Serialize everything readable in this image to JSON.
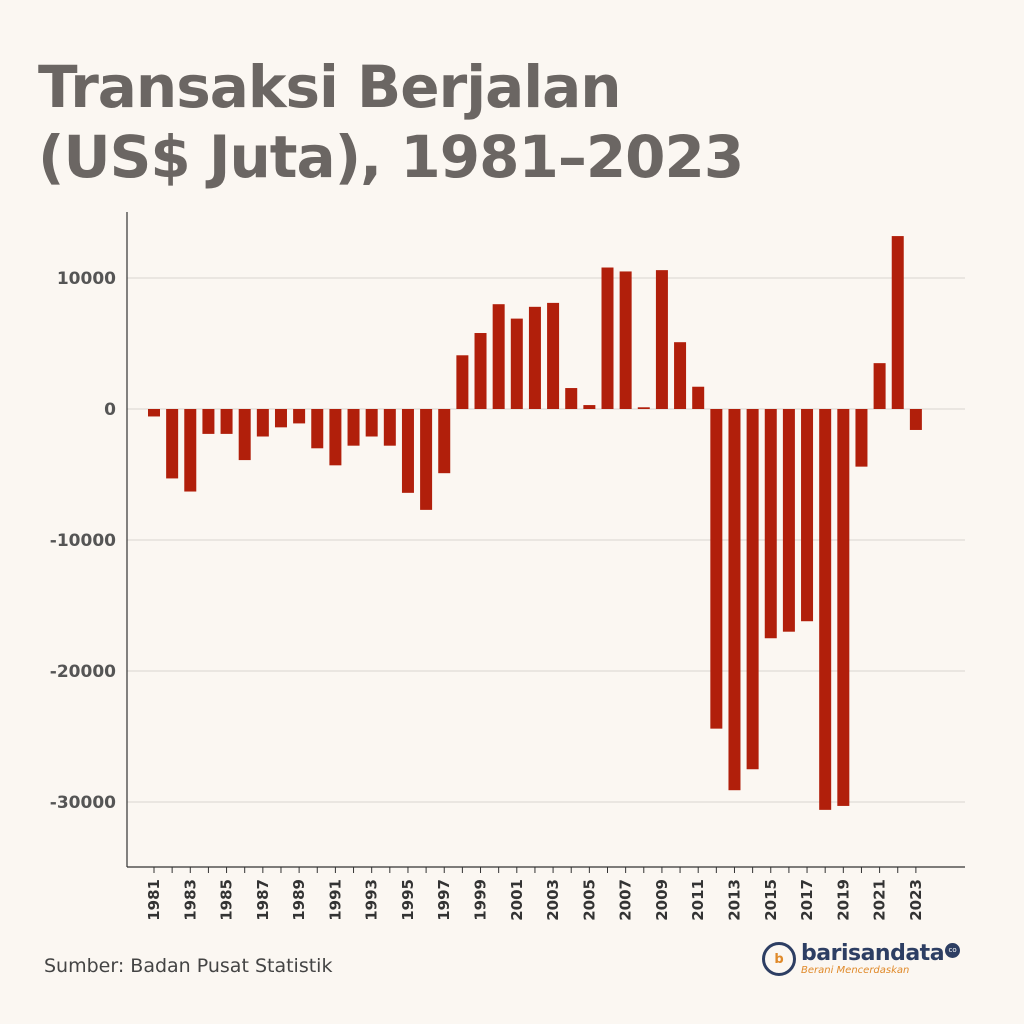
{
  "title_line1": "Transaksi Berjalan",
  "title_line2": "(US$ Juta), 1981–2023",
  "source": "Sumber: Badan Pusat Statistik",
  "logo": {
    "name": "barisandata",
    "suffix": "co",
    "tagline": "Berani Mencerdaskan",
    "mark_icon": "b-letter-logo-icon"
  },
  "colors": {
    "bar": "#b11f0b",
    "grid": "#d9d5d0",
    "axis": "#333333"
  },
  "chart_data": {
    "type": "bar",
    "title": "Transaksi Berjalan (US$ Juta), 1981–2023",
    "xlabel": "",
    "ylabel": "",
    "ylim": [
      -35000,
      14500
    ],
    "yticks": [
      10000,
      0,
      -10000,
      -20000,
      -30000
    ],
    "xtick_labels": [
      "1981",
      "1983",
      "1985",
      "1987",
      "1989",
      "1991",
      "1993",
      "1995",
      "1997",
      "1999",
      "2001",
      "2003",
      "2005",
      "2007",
      "2009",
      "2011",
      "2013",
      "2015",
      "2017",
      "2019",
      "2021",
      "2023"
    ],
    "grid": true,
    "categories": [
      "1981",
      "1982",
      "1983",
      "1984",
      "1985",
      "1986",
      "1987",
      "1988",
      "1989",
      "1990",
      "1991",
      "1992",
      "1993",
      "1994",
      "1995",
      "1996",
      "1997",
      "1998",
      "1999",
      "2000",
      "2001",
      "2002",
      "2003",
      "2004",
      "2005",
      "2006",
      "2007",
      "2008",
      "2009",
      "2010",
      "2011",
      "2012",
      "2013",
      "2014",
      "2015",
      "2016",
      "2017",
      "2018",
      "2019",
      "2020",
      "2021",
      "2022",
      "2023"
    ],
    "values": [
      -570,
      -5300,
      -6300,
      -1900,
      -1900,
      -3900,
      -2100,
      -1400,
      -1100,
      -3000,
      -4300,
      -2800,
      -2100,
      -2800,
      -6400,
      -7700,
      -4900,
      4100,
      5800,
      8000,
      6900,
      7800,
      8100,
      1600,
      300,
      10800,
      10500,
      130,
      10600,
      5100,
      1700,
      -24400,
      -29100,
      -27500,
      -17500,
      -17000,
      -16200,
      -30600,
      -30300,
      -4400,
      3500,
      13200,
      -1600
    ]
  }
}
